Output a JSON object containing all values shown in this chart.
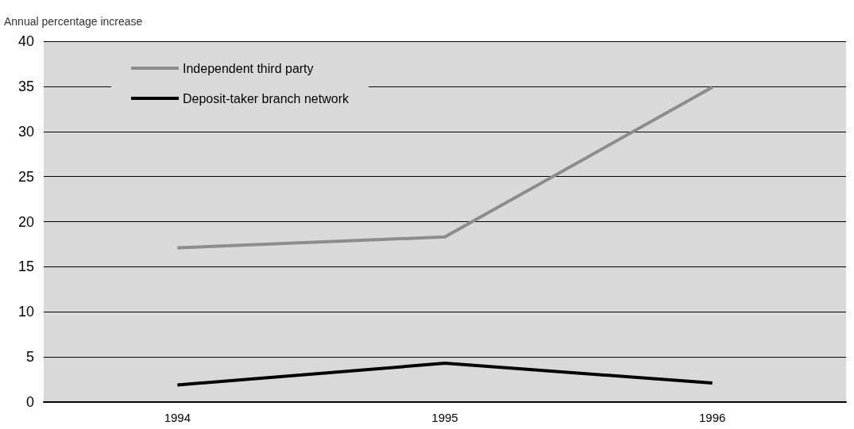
{
  "chart_data": {
    "type": "line",
    "ylabel": "Annual percentage increase",
    "categories": [
      "1994",
      "1995",
      "1996"
    ],
    "series": [
      {
        "name": "Independent third party",
        "color": "#8c8c8c",
        "values": [
          17.1,
          18.3,
          34.9
        ]
      },
      {
        "name": "Deposit-taker branch network",
        "color": "#000000",
        "values": [
          1.9,
          4.3,
          2.1
        ]
      }
    ],
    "ylim": [
      0,
      40
    ],
    "yticks": [
      0,
      5,
      10,
      15,
      20,
      25,
      30,
      35,
      40
    ],
    "grid": "y",
    "legend": "top left",
    "marker": "none",
    "line_style": "solid"
  }
}
